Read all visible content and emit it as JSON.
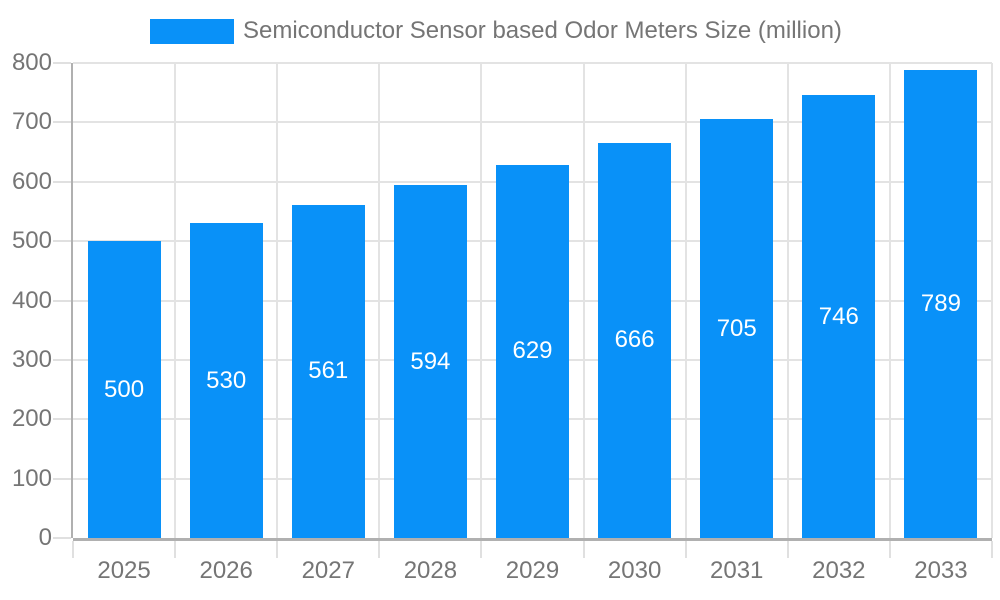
{
  "legend": {
    "label": "Semiconductor Sensor based Odor Meters Size (million)"
  },
  "chart_data": {
    "type": "bar",
    "title": "Semiconductor Sensor based Odor Meters Size (million)",
    "categories": [
      "2025",
      "2026",
      "2027",
      "2028",
      "2029",
      "2030",
      "2031",
      "2032",
      "2033"
    ],
    "values": [
      500,
      530,
      561,
      594,
      629,
      666,
      705,
      746,
      789
    ],
    "xlabel": "",
    "ylabel": "",
    "ylim": [
      0,
      800
    ],
    "yticks": [
      0,
      100,
      200,
      300,
      400,
      500,
      600,
      700,
      800
    ],
    "grid": true,
    "legend_position": "top",
    "value_labels": "inside-center-white",
    "colors": {
      "bar": "#0991f8",
      "gridline": "#e3e3e3",
      "tick": "#e0e0e0",
      "axis": "#b0b0b0",
      "text": "#757575",
      "value_label": "#ffffff",
      "background": "#ffffff"
    }
  }
}
